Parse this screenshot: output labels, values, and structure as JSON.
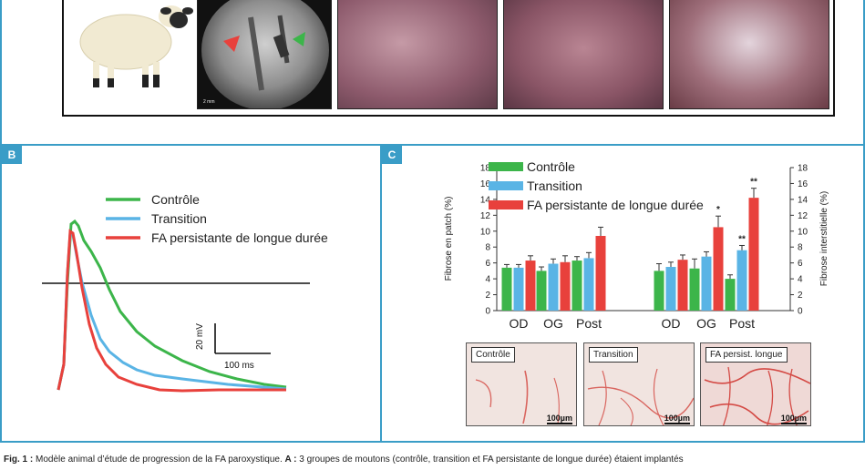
{
  "panels": {
    "a": {
      "xray_marker": "2 mm"
    },
    "b": {
      "tag": "B",
      "legend": [
        "Contrôle",
        "Transition",
        "FA persistante de longue durée"
      ],
      "scale_voltage": "20 mV",
      "scale_time": "100 ms",
      "colors": {
        "controle": "#3cb54a",
        "transition": "#5ab4e5",
        "persistante": "#e8413c"
      }
    },
    "c": {
      "tag": "C",
      "histology": [
        {
          "label": "Contrôle",
          "scale": "100µm"
        },
        {
          "label": "Transition",
          "scale": "100µm"
        },
        {
          "label": "FA persist. longue",
          "scale": "100µm"
        }
      ]
    }
  },
  "chart_data": {
    "type": "bar",
    "ylabel": "Fibrose en patch (%)",
    "ylabel_right": "Fibrose interstitielle (%)",
    "ylim": [
      0,
      18
    ],
    "yticks": [
      "0",
      "2",
      "4",
      "6",
      "8",
      "10",
      "12",
      "14",
      "16",
      "18"
    ],
    "groups": [
      {
        "categories": [
          "OD",
          "OG",
          "Post"
        ]
      },
      {
        "categories": [
          "OD",
          "OG",
          "Post"
        ]
      }
    ],
    "series": [
      {
        "name": "Contrôle",
        "color": "#3cb54a",
        "values": [
          5.4,
          5.0,
          6.3,
          5.0,
          5.3,
          4.0
        ],
        "errors": [
          0.4,
          0.5,
          0.5,
          0.9,
          1.2,
          0.5
        ]
      },
      {
        "name": "Transition",
        "color": "#5ab4e5",
        "values": [
          5.4,
          5.9,
          6.6,
          5.5,
          6.8,
          7.6
        ],
        "errors": [
          0.4,
          0.6,
          0.7,
          0.6,
          0.6,
          0.6
        ]
      },
      {
        "name": "FA persistante de longue durée",
        "color": "#e8413c",
        "values": [
          6.3,
          6.1,
          9.4,
          6.4,
          10.5,
          14.2
        ],
        "errors": [
          0.6,
          0.8,
          1.1,
          0.6,
          1.4,
          1.2
        ]
      }
    ],
    "annotations": [
      "",
      "",
      "",
      "",
      "*",
      "**",
      "",
      "",
      "",
      "",
      "",
      "**"
    ],
    "legend_position": "top-left"
  },
  "caption": {
    "prefix": "Fig. 1 : ",
    "text": "Modèle animal d’étude de progression de la FA paroxystique. ",
    "a_label": "A : ",
    "a_text": "3 groupes de moutons (contrôle, transition et FA persistante de longue durée) étaient implantés"
  }
}
